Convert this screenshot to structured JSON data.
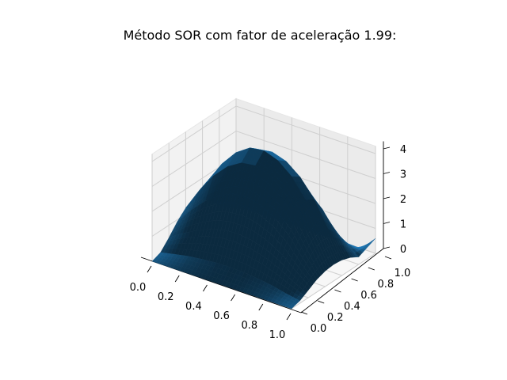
{
  "figure": {
    "title": "Método SOR com fator de aceleração 1.99:",
    "colors": {
      "surface": "#1f77b4",
      "pane_left": "#f2f2f2",
      "pane_back": "#ebebeb",
      "pane_floor": "#f7f7f7",
      "grid": "#cfcfcf"
    }
  },
  "chart_data": {
    "type": "surface",
    "title": "Método SOR com fator de aceleração 1.99:",
    "xlabel": "",
    "ylabel": "",
    "zlabel": "",
    "xlim": [
      0.0,
      1.0
    ],
    "ylim": [
      0.0,
      1.0
    ],
    "zlim": [
      0.0,
      4.3
    ],
    "x_ticks": [
      "0.0",
      "0.2",
      "0.4",
      "0.6",
      "0.8",
      "1.0"
    ],
    "y_ticks": [
      "0.0",
      "0.2",
      "0.4",
      "0.6",
      "0.8",
      "1.0"
    ],
    "z_ticks": [
      "0",
      "1",
      "2",
      "3",
      "4"
    ],
    "grid": true,
    "series": [
      {
        "surface_samples": {
          "x": [
            0.0,
            0.1,
            0.2,
            0.3,
            0.4,
            0.5,
            0.6,
            0.7,
            0.8,
            0.9,
            1.0
          ],
          "y": [
            0.0,
            0.1,
            0.2,
            0.3,
            0.4,
            0.5,
            0.6,
            0.7,
            0.8,
            0.9,
            1.0
          ],
          "z": [
            [
              0.0,
              0.13,
              0.5,
              0.92,
              1.25,
              1.32,
              1.18,
              0.86,
              0.47,
              0.15,
              0.0
            ],
            [
              0.0,
              0.25,
              0.87,
              1.58,
              2.16,
              2.32,
              2.14,
              1.6,
              0.89,
              0.3,
              0.0
            ],
            [
              0.0,
              0.36,
              1.18,
              2.12,
              2.92,
              3.18,
              2.95,
              2.22,
              1.24,
              0.43,
              0.0
            ],
            [
              0.0,
              0.43,
              1.42,
              2.55,
              3.48,
              3.82,
              3.55,
              2.7,
              1.52,
              0.53,
              0.0
            ],
            [
              0.0,
              0.48,
              1.57,
              2.8,
              3.82,
              4.2,
              3.92,
              2.98,
              1.68,
              0.59,
              0.0
            ],
            [
              0.0,
              0.49,
              1.6,
              2.86,
              3.9,
              4.28,
              4.0,
              3.05,
              1.72,
              0.6,
              0.0
            ],
            [
              0.0,
              0.47,
              1.53,
              2.72,
              3.72,
              4.08,
              3.82,
              2.92,
              1.65,
              0.58,
              0.0
            ],
            [
              0.0,
              0.41,
              1.35,
              2.4,
              3.28,
              3.62,
              3.38,
              2.58,
              1.46,
              0.51,
              0.0
            ],
            [
              0.0,
              0.33,
              1.06,
              1.9,
              2.6,
              2.86,
              2.68,
              2.05,
              1.16,
              0.41,
              0.0
            ],
            [
              0.0,
              0.2,
              0.66,
              1.18,
              1.62,
              1.79,
              1.68,
              1.28,
              0.73,
              0.26,
              0.0
            ],
            [
              0.0,
              0.1,
              0.3,
              0.5,
              0.62,
              0.66,
              0.62,
              0.5,
              0.3,
              0.45,
              0.6
            ]
          ]
        }
      }
    ]
  }
}
